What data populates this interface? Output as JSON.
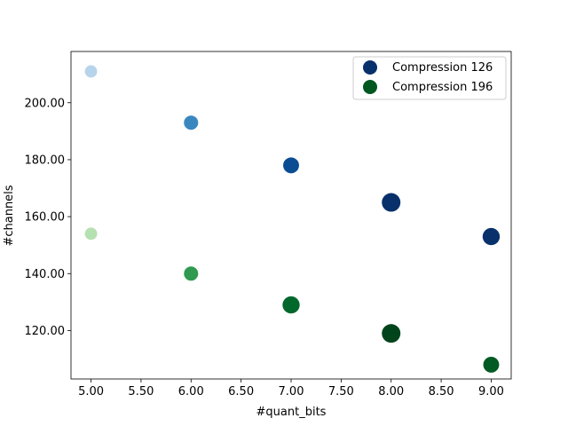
{
  "chart_data": {
    "type": "scatter",
    "xlabel": "#quant_bits",
    "ylabel": "#channels",
    "xlim": [
      4.8,
      9.2
    ],
    "ylim": [
      103,
      218
    ],
    "x_ticks": [
      5.0,
      5.5,
      6.0,
      6.5,
      7.0,
      7.5,
      8.0,
      8.5,
      9.0
    ],
    "x_tick_labels": [
      "5.00",
      "5.50",
      "6.00",
      "6.50",
      "7.00",
      "7.50",
      "8.00",
      "8.50",
      "9.00"
    ],
    "y_ticks": [
      120,
      140,
      160,
      180,
      200
    ],
    "y_tick_labels": [
      "120.00",
      "140.00",
      "160.00",
      "180.00",
      "200.00"
    ],
    "grid": false,
    "legend_position": "top-right",
    "series": [
      {
        "name": "Compression 126",
        "legend_color": "#08306b",
        "points": [
          {
            "x": 5,
            "y": 211,
            "size": 0.35,
            "color": "#b7d4ea"
          },
          {
            "x": 6,
            "y": 193,
            "size": 0.55,
            "color": "#3a87c0"
          },
          {
            "x": 7,
            "y": 178,
            "size": 0.72,
            "color": "#0b4d93"
          },
          {
            "x": 8,
            "y": 165,
            "size": 1.0,
            "color": "#08306b"
          },
          {
            "x": 9,
            "y": 153,
            "size": 0.85,
            "color": "#08306b"
          }
        ]
      },
      {
        "name": "Compression 196",
        "legend_color": "#00571f",
        "points": [
          {
            "x": 5,
            "y": 154,
            "size": 0.35,
            "color": "#b5e0b0"
          },
          {
            "x": 6,
            "y": 140,
            "size": 0.55,
            "color": "#2f9a4f"
          },
          {
            "x": 7,
            "y": 129,
            "size": 0.85,
            "color": "#00682b"
          },
          {
            "x": 8,
            "y": 119,
            "size": 1.0,
            "color": "#00441b"
          },
          {
            "x": 9,
            "y": 108,
            "size": 0.72,
            "color": "#005a24"
          }
        ]
      }
    ]
  }
}
